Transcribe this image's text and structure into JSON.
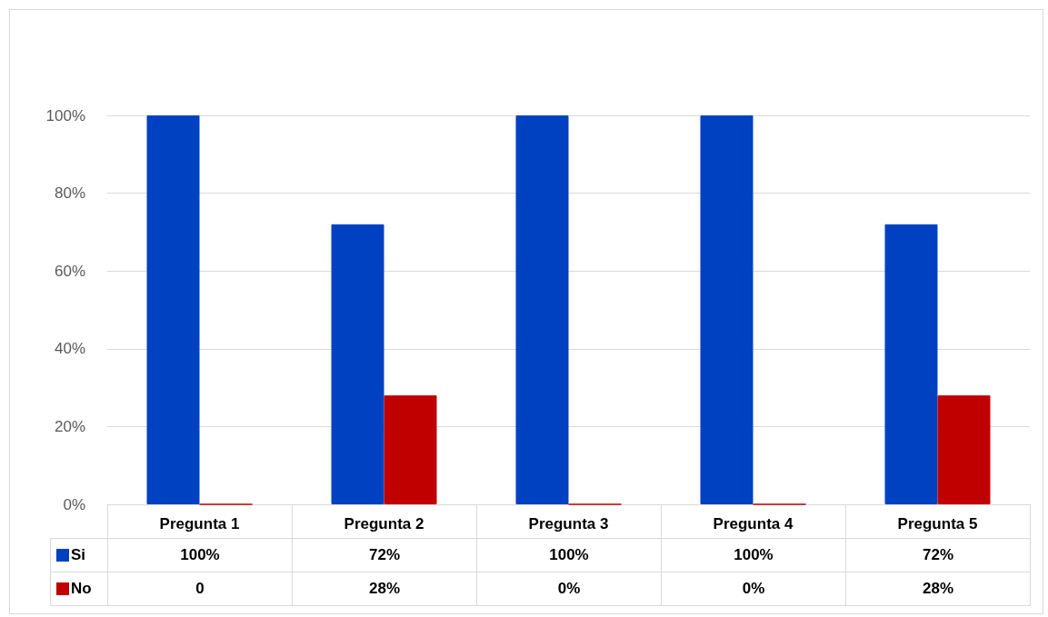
{
  "chart_data": {
    "type": "bar",
    "categories": [
      "Pregunta 1",
      "Pregunta 2",
      "Pregunta 3",
      "Pregunta 4",
      "Pregunta 5"
    ],
    "series": [
      {
        "name": "Si",
        "color": "#0041c2",
        "values": [
          100,
          72,
          100,
          100,
          72
        ],
        "value_labels": [
          "100%",
          "72%",
          "100%",
          "100%",
          "72%"
        ]
      },
      {
        "name": "No",
        "color": "#c00000",
        "values": [
          0,
          28,
          0,
          0,
          28
        ],
        "value_labels": [
          "0",
          "28%",
          "0%",
          "0%",
          "28%"
        ]
      }
    ],
    "ylim": [
      0,
      100
    ],
    "yticks": [
      {
        "value": 0,
        "label": "0%"
      },
      {
        "value": 20,
        "label": "20%"
      },
      {
        "value": 40,
        "label": "40%"
      },
      {
        "value": 60,
        "label": "60%"
      },
      {
        "value": 80,
        "label": "80%"
      },
      {
        "value": 100,
        "label": "100%"
      }
    ],
    "grid": "y",
    "legend": "bottom"
  }
}
